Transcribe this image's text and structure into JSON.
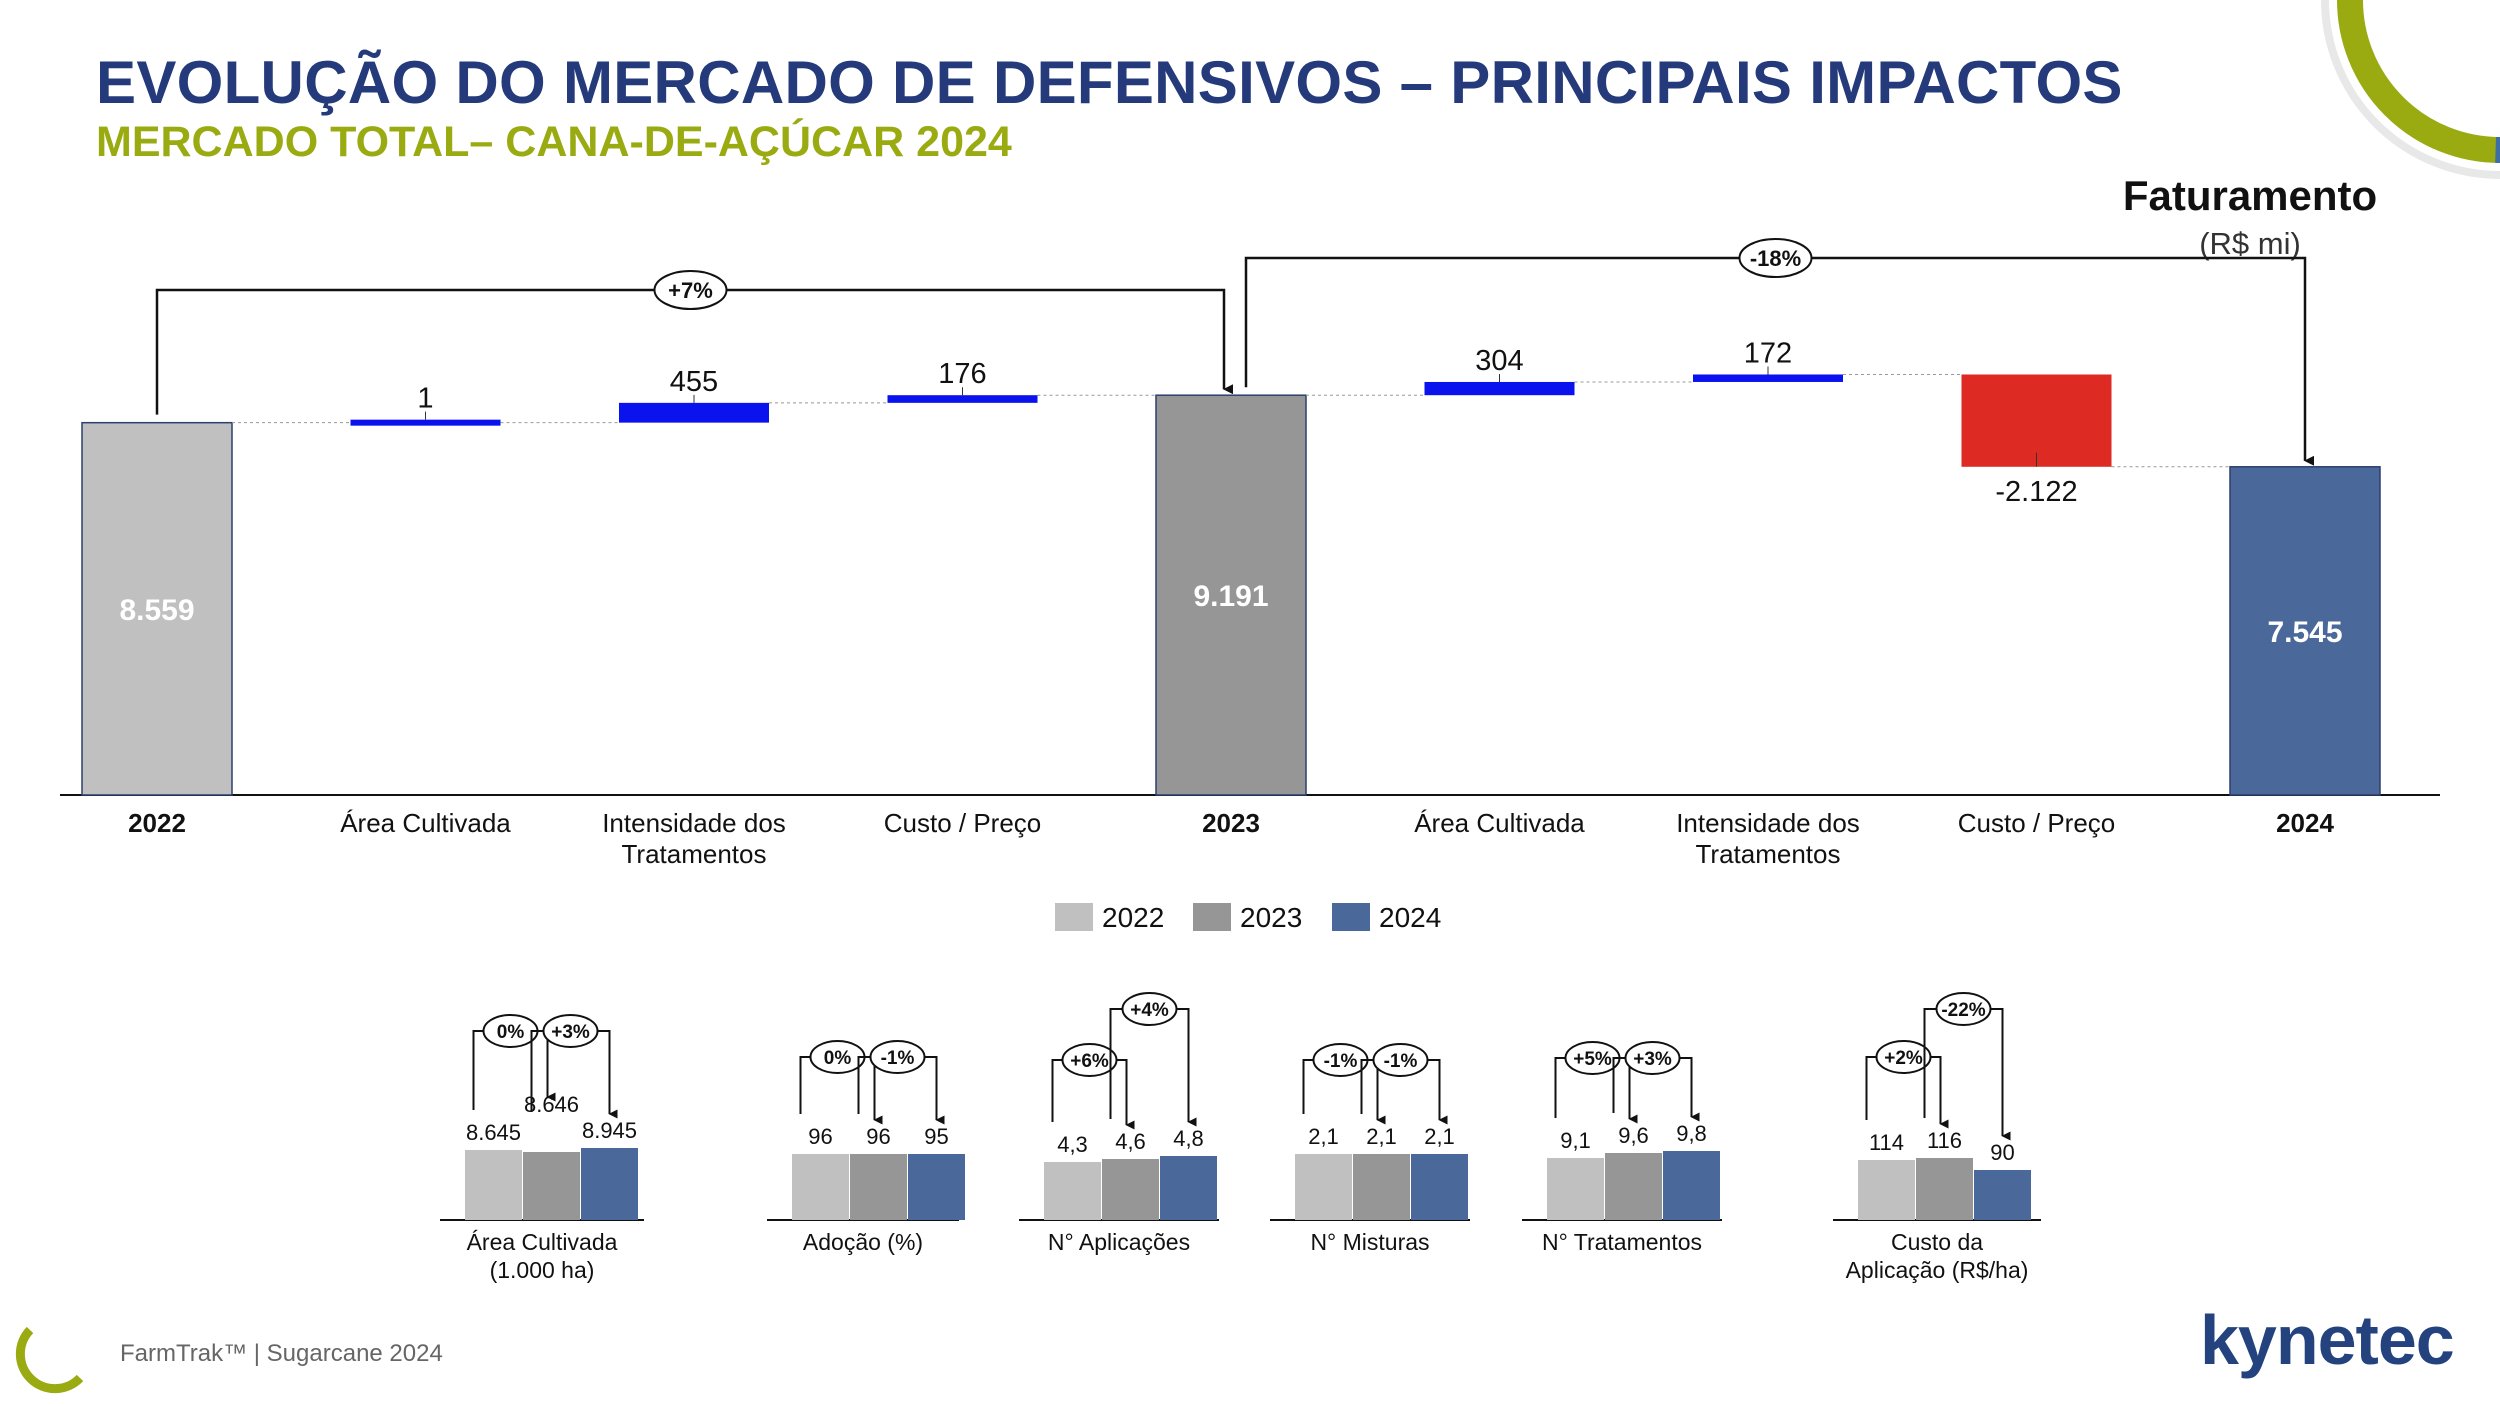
{
  "header": {
    "title": "EVOLUÇÃO DO MERCADO DE DEFENSIVOS – PRINCIPAIS IMPACTOS",
    "subtitle": "MERCADO TOTAL– CANA-DE-AÇÚCAR 2024"
  },
  "metric": {
    "title": "Faturamento",
    "unit": "(R$ mi)"
  },
  "colors": {
    "y2022": "#c0c0c0",
    "y2023": "#969696",
    "y2024": "#4a6899",
    "positive": "#0a12ee",
    "negative": "#dd2a22",
    "title": "#243a7a",
    "subtitle": "#9aab12"
  },
  "chart_data": [
    {
      "type": "waterfall",
      "title": "Faturamento",
      "unit": "(R$ mi)",
      "ylim": [
        0,
        10000
      ],
      "steps": [
        {
          "kind": "total",
          "label": "2022",
          "value": 8559,
          "display": "8.559",
          "color": "y2022"
        },
        {
          "kind": "delta",
          "label": "Área Cultivada",
          "value": 1,
          "display": "1"
        },
        {
          "kind": "delta",
          "label": "Intensidade dos Tratamentos",
          "value": 455,
          "display": "455"
        },
        {
          "kind": "delta",
          "label": "Custo / Preço",
          "value": 176,
          "display": "176"
        },
        {
          "kind": "total",
          "label": "2023",
          "value": 9191,
          "display": "9.191",
          "color": "y2023"
        },
        {
          "kind": "delta",
          "label": "Área Cultivada",
          "value": 304,
          "display": "304"
        },
        {
          "kind": "delta",
          "label": "Intensidade dos Tratamentos",
          "value": 172,
          "display": "172"
        },
        {
          "kind": "delta",
          "label": "Custo / Preço",
          "value": -2122,
          "display": "-2.122"
        },
        {
          "kind": "total",
          "label": "2024",
          "value": 7545,
          "display": "7.545",
          "color": "y2024"
        }
      ],
      "brackets": [
        {
          "from": 0,
          "to": 4,
          "label": "+7%"
        },
        {
          "from": 4,
          "to": 8,
          "label": "-18%"
        }
      ],
      "legend": [
        "2022",
        "2023",
        "2024"
      ]
    },
    {
      "type": "bar",
      "title": "Área Cultivada (1.000 ha)",
      "label_lines": [
        "Área Cultivada",
        "(1.000 ha)"
      ],
      "categories": [
        "2022",
        "2023",
        "2024"
      ],
      "values": [
        8645,
        8646,
        8945
      ],
      "labels": [
        "8.645",
        "8.646",
        "8.945"
      ],
      "changes": [
        "0%",
        "+3%"
      ]
    },
    {
      "type": "bar",
      "title": "Adoção (%)",
      "label_lines": [
        "Adoção (%)"
      ],
      "categories": [
        "2022",
        "2023",
        "2024"
      ],
      "values": [
        96,
        96,
        95
      ],
      "labels": [
        "96",
        "96",
        "95"
      ],
      "changes": [
        "0%",
        "-1%"
      ]
    },
    {
      "type": "bar",
      "title": "N° Aplicações",
      "label_lines": [
        "N° Aplicações"
      ],
      "categories": [
        "2022",
        "2023",
        "2024"
      ],
      "values": [
        4.3,
        4.6,
        4.8
      ],
      "labels": [
        "4,3",
        "4,6",
        "4,8"
      ],
      "changes": [
        "+6%",
        "+4%"
      ]
    },
    {
      "type": "bar",
      "title": "N° Misturas",
      "label_lines": [
        "N° Misturas"
      ],
      "categories": [
        "2022",
        "2023",
        "2024"
      ],
      "values": [
        2.1,
        2.1,
        2.1
      ],
      "labels": [
        "2,1",
        "2,1",
        "2,1"
      ],
      "changes": [
        "-1%",
        "-1%"
      ]
    },
    {
      "type": "bar",
      "title": "N° Tratamentos",
      "label_lines": [
        "N° Tratamentos"
      ],
      "categories": [
        "2022",
        "2023",
        "2024"
      ],
      "values": [
        9.1,
        9.6,
        9.8
      ],
      "labels": [
        "9,1",
        "9,6",
        "9,8"
      ],
      "changes": [
        "+5%",
        "+3%"
      ]
    },
    {
      "type": "bar",
      "title": "Custo da Aplicação (R$/ha)",
      "label_lines": [
        "Custo da",
        "Aplicação (R$/ha)"
      ],
      "categories": [
        "2022",
        "2023",
        "2024"
      ],
      "values": [
        114,
        116,
        90
      ],
      "labels": [
        "114",
        "116",
        "90"
      ],
      "changes": [
        "+2%",
        "-22%"
      ]
    }
  ],
  "footer": {
    "text": "FarmTrak™ | Sugarcane 2024"
  },
  "brand": {
    "logo_text": "kynetec"
  }
}
